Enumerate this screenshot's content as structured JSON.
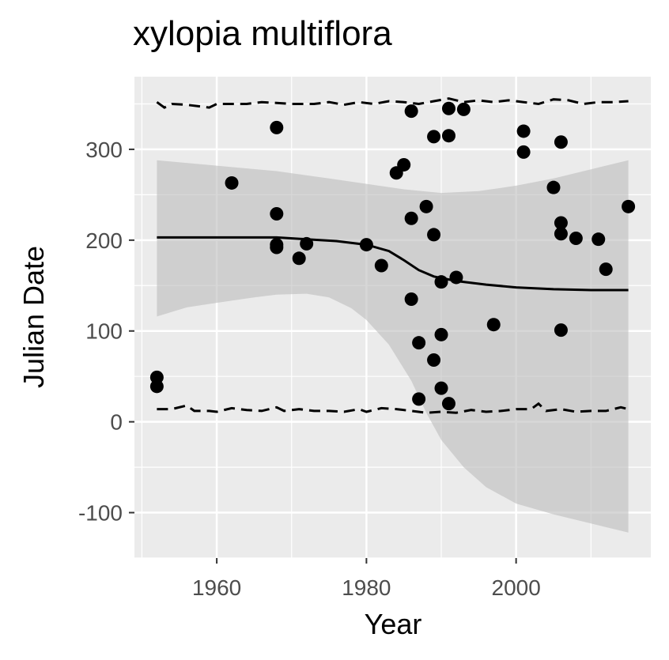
{
  "chart_data": {
    "type": "scatter",
    "title": "xylopia multiflora",
    "xlabel": "Year",
    "ylabel": "Julian Date",
    "xlim": [
      1949,
      2018
    ],
    "ylim": [
      -150,
      380
    ],
    "x_ticks": [
      1960,
      1980,
      2000
    ],
    "y_ticks": [
      -100,
      0,
      100,
      200,
      300
    ],
    "x_tick_labels": [
      "1960",
      "1980",
      "2000"
    ],
    "y_tick_labels": [
      "-100",
      "0",
      "100",
      "200",
      "300"
    ],
    "grid": true,
    "legend": "none",
    "colors": {
      "panel": "#ebebeb",
      "grid": "#ffffff",
      "ribbon": "#bdbdbd",
      "points": "#000000",
      "line": "#000000"
    },
    "points": [
      {
        "x": 1952,
        "y": 49
      },
      {
        "x": 1952,
        "y": 39
      },
      {
        "x": 1962,
        "y": 263
      },
      {
        "x": 1968,
        "y": 324
      },
      {
        "x": 1968,
        "y": 229
      },
      {
        "x": 1968,
        "y": 195
      },
      {
        "x": 1968,
        "y": 192
      },
      {
        "x": 1971,
        "y": 180
      },
      {
        "x": 1972,
        "y": 196
      },
      {
        "x": 1980,
        "y": 195
      },
      {
        "x": 1982,
        "y": 172
      },
      {
        "x": 1984,
        "y": 274
      },
      {
        "x": 1985,
        "y": 283
      },
      {
        "x": 1986,
        "y": 342
      },
      {
        "x": 1986,
        "y": 224
      },
      {
        "x": 1986,
        "y": 135
      },
      {
        "x": 1987,
        "y": 87
      },
      {
        "x": 1987,
        "y": 25
      },
      {
        "x": 1988,
        "y": 237
      },
      {
        "x": 1989,
        "y": 314
      },
      {
        "x": 1989,
        "y": 206
      },
      {
        "x": 1989,
        "y": 68
      },
      {
        "x": 1990,
        "y": 154
      },
      {
        "x": 1990,
        "y": 96
      },
      {
        "x": 1990,
        "y": 37
      },
      {
        "x": 1991,
        "y": 345
      },
      {
        "x": 1991,
        "y": 315
      },
      {
        "x": 1991,
        "y": 20
      },
      {
        "x": 1992,
        "y": 159
      },
      {
        "x": 1993,
        "y": 344
      },
      {
        "x": 1997,
        "y": 107
      },
      {
        "x": 2001,
        "y": 320
      },
      {
        "x": 2001,
        "y": 297
      },
      {
        "x": 2005,
        "y": 258
      },
      {
        "x": 2006,
        "y": 308
      },
      {
        "x": 2006,
        "y": 219
      },
      {
        "x": 2006,
        "y": 207
      },
      {
        "x": 2006,
        "y": 101
      },
      {
        "x": 2008,
        "y": 202
      },
      {
        "x": 2011,
        "y": 201
      },
      {
        "x": 2012,
        "y": 168
      },
      {
        "x": 2015,
        "y": 237
      }
    ],
    "fit_line": [
      {
        "x": 1952,
        "y": 203
      },
      {
        "x": 1960,
        "y": 203
      },
      {
        "x": 1968,
        "y": 203
      },
      {
        "x": 1972,
        "y": 201
      },
      {
        "x": 1976,
        "y": 199
      },
      {
        "x": 1980,
        "y": 195
      },
      {
        "x": 1983,
        "y": 188
      },
      {
        "x": 1985,
        "y": 178
      },
      {
        "x": 1987,
        "y": 167
      },
      {
        "x": 1989,
        "y": 160
      },
      {
        "x": 1992,
        "y": 155
      },
      {
        "x": 1996,
        "y": 151
      },
      {
        "x": 2000,
        "y": 148
      },
      {
        "x": 2005,
        "y": 146
      },
      {
        "x": 2010,
        "y": 145
      },
      {
        "x": 2015,
        "y": 145
      }
    ],
    "ribbon_upper": [
      {
        "x": 1952,
        "y": 288
      },
      {
        "x": 1960,
        "y": 282
      },
      {
        "x": 1968,
        "y": 276
      },
      {
        "x": 1975,
        "y": 268
      },
      {
        "x": 1980,
        "y": 262
      },
      {
        "x": 1985,
        "y": 256
      },
      {
        "x": 1990,
        "y": 252
      },
      {
        "x": 1995,
        "y": 254
      },
      {
        "x": 2000,
        "y": 260
      },
      {
        "x": 2005,
        "y": 268
      },
      {
        "x": 2010,
        "y": 278
      },
      {
        "x": 2015,
        "y": 288
      }
    ],
    "ribbon_lower": [
      {
        "x": 1952,
        "y": 116
      },
      {
        "x": 1956,
        "y": 126
      },
      {
        "x": 1960,
        "y": 131
      },
      {
        "x": 1965,
        "y": 137
      },
      {
        "x": 1968,
        "y": 140
      },
      {
        "x": 1972,
        "y": 141
      },
      {
        "x": 1975,
        "y": 137
      },
      {
        "x": 1978,
        "y": 125
      },
      {
        "x": 1980,
        "y": 112
      },
      {
        "x": 1983,
        "y": 85
      },
      {
        "x": 1986,
        "y": 45
      },
      {
        "x": 1988,
        "y": 10
      },
      {
        "x": 1990,
        "y": -20
      },
      {
        "x": 1993,
        "y": -50
      },
      {
        "x": 1996,
        "y": -72
      },
      {
        "x": 2000,
        "y": -90
      },
      {
        "x": 2005,
        "y": -102
      },
      {
        "x": 2010,
        "y": -112
      },
      {
        "x": 2015,
        "y": -122
      }
    ],
    "dashed_upper": [
      {
        "x": 1952,
        "y": 352
      },
      {
        "x": 1953,
        "y": 346
      },
      {
        "x": 1954,
        "y": 350
      },
      {
        "x": 1956,
        "y": 349
      },
      {
        "x": 1958,
        "y": 347
      },
      {
        "x": 1959,
        "y": 346
      },
      {
        "x": 1960,
        "y": 350
      },
      {
        "x": 1962,
        "y": 350
      },
      {
        "x": 1964,
        "y": 350
      },
      {
        "x": 1966,
        "y": 352
      },
      {
        "x": 1968,
        "y": 351
      },
      {
        "x": 1970,
        "y": 350
      },
      {
        "x": 1973,
        "y": 350
      },
      {
        "x": 1975,
        "y": 352
      },
      {
        "x": 1977,
        "y": 349
      },
      {
        "x": 1979,
        "y": 352
      },
      {
        "x": 1981,
        "y": 350
      },
      {
        "x": 1983,
        "y": 353
      },
      {
        "x": 1985,
        "y": 352
      },
      {
        "x": 1987,
        "y": 350
      },
      {
        "x": 1989,
        "y": 353
      },
      {
        "x": 1991,
        "y": 356
      },
      {
        "x": 1993,
        "y": 352
      },
      {
        "x": 1995,
        "y": 354
      },
      {
        "x": 1997,
        "y": 352
      },
      {
        "x": 1999,
        "y": 354
      },
      {
        "x": 2001,
        "y": 352
      },
      {
        "x": 2003,
        "y": 350
      },
      {
        "x": 2005,
        "y": 355
      },
      {
        "x": 2007,
        "y": 354
      },
      {
        "x": 2009,
        "y": 350
      },
      {
        "x": 2011,
        "y": 352
      },
      {
        "x": 2013,
        "y": 352
      },
      {
        "x": 2015,
        "y": 353
      }
    ],
    "dashed_lower": [
      {
        "x": 1952,
        "y": 14
      },
      {
        "x": 1954,
        "y": 14
      },
      {
        "x": 1956,
        "y": 18
      },
      {
        "x": 1957,
        "y": 12
      },
      {
        "x": 1959,
        "y": 12
      },
      {
        "x": 1960,
        "y": 11
      },
      {
        "x": 1962,
        "y": 15
      },
      {
        "x": 1964,
        "y": 13
      },
      {
        "x": 1966,
        "y": 12
      },
      {
        "x": 1968,
        "y": 16
      },
      {
        "x": 1969,
        "y": 12
      },
      {
        "x": 1971,
        "y": 14
      },
      {
        "x": 1973,
        "y": 12
      },
      {
        "x": 1975,
        "y": 12
      },
      {
        "x": 1977,
        "y": 11
      },
      {
        "x": 1979,
        "y": 14
      },
      {
        "x": 1980,
        "y": 11
      },
      {
        "x": 1982,
        "y": 15
      },
      {
        "x": 1984,
        "y": 14
      },
      {
        "x": 1986,
        "y": 12
      },
      {
        "x": 1988,
        "y": 10
      },
      {
        "x": 1990,
        "y": 11
      },
      {
        "x": 1992,
        "y": 10
      },
      {
        "x": 1994,
        "y": 13
      },
      {
        "x": 1996,
        "y": 11
      },
      {
        "x": 1998,
        "y": 12
      },
      {
        "x": 2000,
        "y": 14
      },
      {
        "x": 2002,
        "y": 14
      },
      {
        "x": 2003,
        "y": 20
      },
      {
        "x": 2004,
        "y": 12
      },
      {
        "x": 2006,
        "y": 14
      },
      {
        "x": 2008,
        "y": 11
      },
      {
        "x": 2010,
        "y": 12
      },
      {
        "x": 2012,
        "y": 12
      },
      {
        "x": 2014,
        "y": 16
      },
      {
        "x": 2015,
        "y": 14
      }
    ]
  }
}
